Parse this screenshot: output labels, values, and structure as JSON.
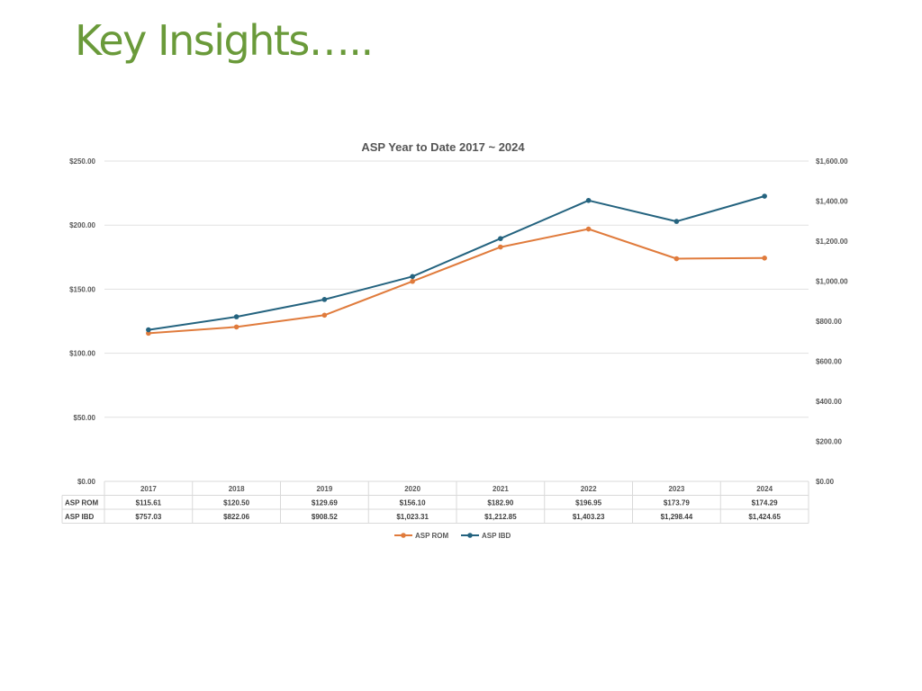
{
  "slide": {
    "title": "Key Insights….."
  },
  "chart_data": {
    "type": "line",
    "title": "ASP Year to Date 2017 ~ 2024",
    "categories": [
      "2017",
      "2018",
      "2019",
      "2020",
      "2021",
      "2022",
      "2023",
      "2024"
    ],
    "series": [
      {
        "name": "ASP ROM",
        "axis": "left",
        "color": "#e07b3c",
        "values": [
          115.61,
          120.5,
          129.69,
          156.1,
          182.9,
          196.95,
          173.79,
          174.29
        ],
        "labels": [
          "$115.61",
          "$120.50",
          "$129.69",
          "$156.10",
          "$182.90",
          "$196.95",
          "$173.79",
          "$174.29"
        ]
      },
      {
        "name": "ASP IBD",
        "axis": "right",
        "color": "#24637f",
        "values": [
          757.03,
          822.06,
          908.52,
          1023.31,
          1212.85,
          1403.23,
          1298.44,
          1424.65
        ],
        "labels": [
          "$757.03",
          "$822.06",
          "$908.52",
          "$1,023.31",
          "$1,212.85",
          "$1,403.23",
          "$1,298.44",
          "$1,424.65"
        ]
      }
    ],
    "y_left": {
      "range": [
        0,
        250
      ],
      "ticks": [
        0,
        50,
        100,
        150,
        200,
        250
      ],
      "tick_labels": [
        "$0.00",
        "$50.00",
        "$100.00",
        "$150.00",
        "$200.00",
        "$250.00"
      ]
    },
    "y_right": {
      "range": [
        0,
        1600
      ],
      "ticks": [
        0,
        200,
        400,
        600,
        800,
        1000,
        1200,
        1400,
        1600
      ],
      "tick_labels": [
        "$0.00",
        "$200.00",
        "$400.00",
        "$600.00",
        "$800.00",
        "$1,000.00",
        "$1,200.00",
        "$1,400.00",
        "$1,600.00"
      ]
    },
    "grid": true,
    "data_table": true,
    "legend": "bottom"
  }
}
